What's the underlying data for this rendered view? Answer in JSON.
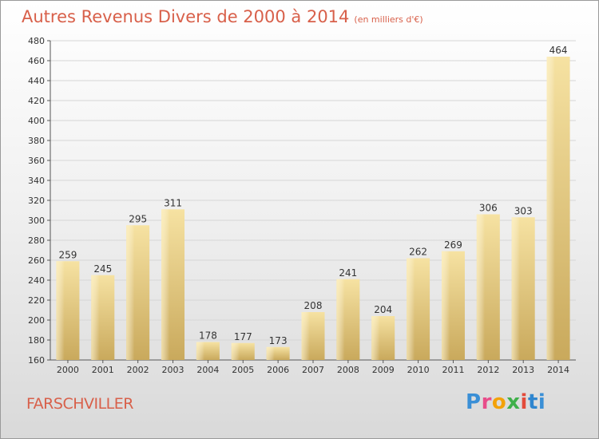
{
  "title": "Autres Revenus Divers de 2000 à 2014",
  "subtitle": "(en milliers d'€)",
  "place": "FARSCHVILLER",
  "logo": {
    "text": "Proxiti",
    "colors": [
      "#3a8fd6",
      "#e84d8a",
      "#f3a20a",
      "#3fb04a",
      "#e34b3b",
      "#2f86cf"
    ]
  },
  "chart_data": {
    "type": "bar",
    "title": "Autres Revenus Divers de 2000 à 2014",
    "subtitle": "(en milliers d'€)",
    "xlabel": "",
    "ylabel": "",
    "ylim": [
      160,
      480
    ],
    "ytick_step": 20,
    "grid": true,
    "categories": [
      "2000",
      "2001",
      "2002",
      "2003",
      "2004",
      "2005",
      "2006",
      "2007",
      "2008",
      "2009",
      "2010",
      "2011",
      "2012",
      "2013",
      "2014"
    ],
    "values": [
      259,
      245,
      295,
      311,
      178,
      177,
      173,
      208,
      241,
      204,
      262,
      269,
      306,
      303,
      464
    ],
    "bar_color": "#e8c97a"
  }
}
